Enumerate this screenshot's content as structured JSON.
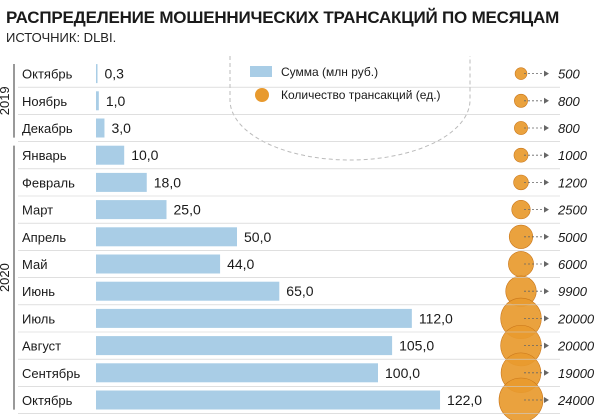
{
  "title": "РАСПРЕДЕЛЕНИЕ МОШЕННИЧЕСКИХ ТРАНСАКЦИЙ ПО МЕСЯЦАМ",
  "source": "ИСТОЧНИК: DLBI.",
  "colors": {
    "bar": "#a9cde6",
    "bubble": "#e89a2e",
    "bubble_edge": "#c9761a",
    "divider": "#cccccc"
  },
  "chart_data": {
    "type": "bar",
    "title": "РАСПРЕДЕЛЕНИЕ МОШЕННИЧЕСКИХ ТРАНСАКЦИЙ ПО МЕСЯЦАМ",
    "year_groups": [
      {
        "label": "2019",
        "categories": [
          "Октябрь",
          "Ноябрь",
          "Декабрь"
        ]
      },
      {
        "label": "2020",
        "categories": [
          "Январь",
          "Февраль",
          "Март",
          "Апрель",
          "Май",
          "Июнь",
          "Июль",
          "Август",
          "Сентябрь",
          "Октябрь"
        ]
      }
    ],
    "categories": [
      "Октябрь",
      "Ноябрь",
      "Декабрь",
      "Январь",
      "Февраль",
      "Март",
      "Апрель",
      "Май",
      "Июнь",
      "Июль",
      "Август",
      "Сентябрь",
      "Октябрь"
    ],
    "value_labels": [
      "0,3",
      "1,0",
      "3,0",
      "10,0",
      "18,0",
      "25,0",
      "50,0",
      "44,0",
      "65,0",
      "112,0",
      "105,0",
      "100,0",
      "122,0"
    ],
    "count_labels": [
      "500",
      "800",
      "800",
      "1000",
      "1200",
      "2500",
      "5000",
      "6000",
      "9900",
      "20000",
      "20000",
      "19000",
      "24000"
    ],
    "series": [
      {
        "name": "Сумма (млн руб.)",
        "type": "bar",
        "values": [
          0.3,
          1.0,
          3.0,
          10.0,
          18.0,
          25.0,
          50.0,
          44.0,
          65.0,
          112.0,
          105.0,
          100.0,
          122.0
        ]
      },
      {
        "name": "Количество трансакций (ед.)",
        "type": "bubble",
        "values": [
          500,
          800,
          800,
          1000,
          1200,
          2500,
          5000,
          6000,
          9900,
          20000,
          20000,
          19000,
          24000
        ]
      }
    ],
    "legend_position": "top-center",
    "grid": false
  }
}
